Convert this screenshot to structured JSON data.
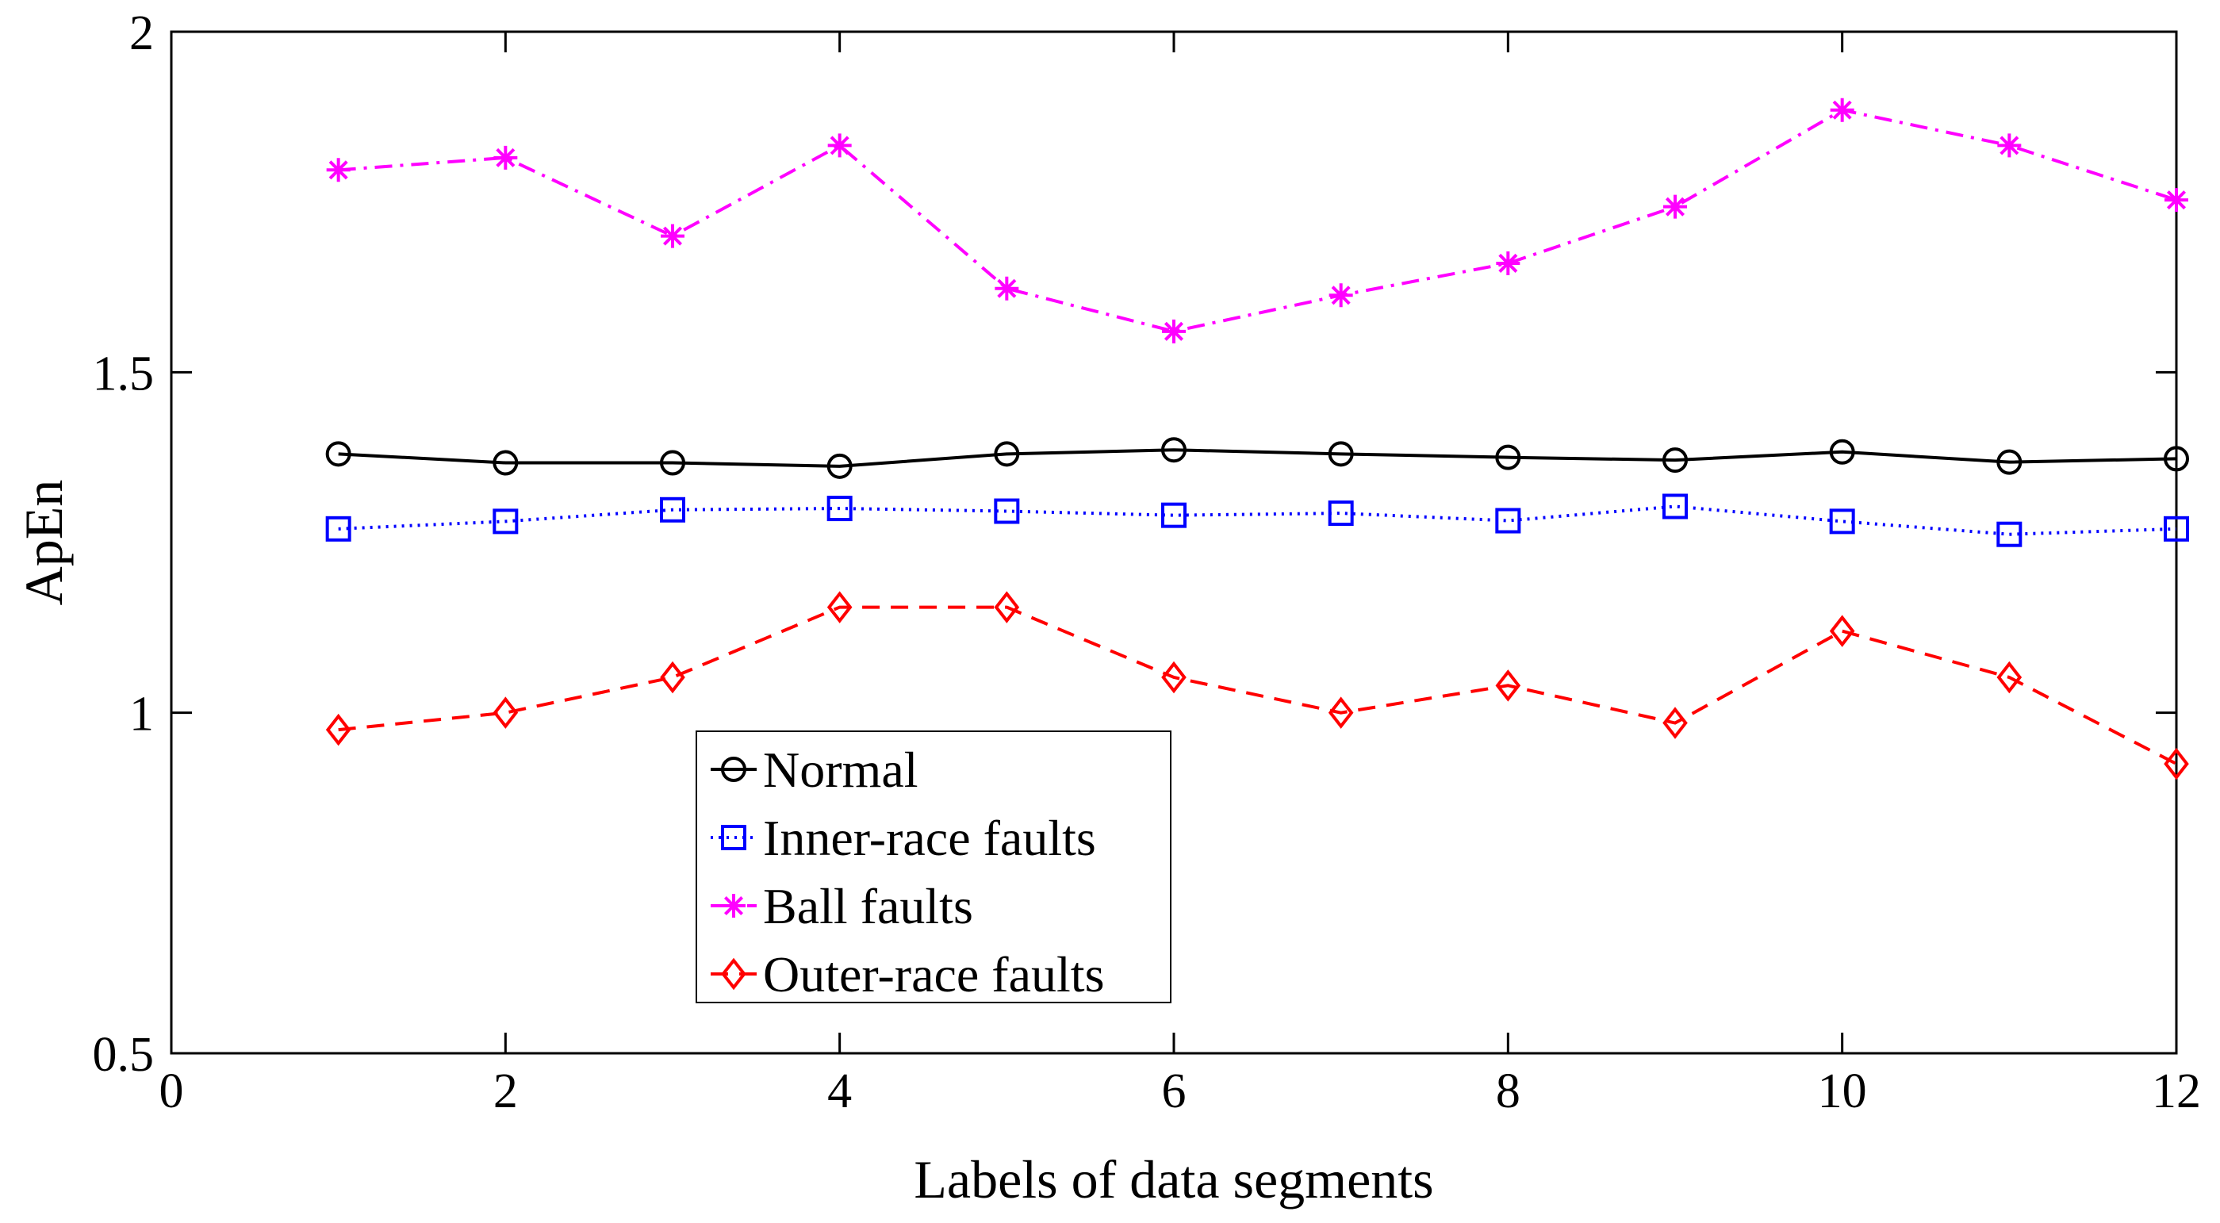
{
  "chart_data": {
    "type": "line",
    "title": "",
    "xlabel": "Labels of data segments",
    "ylabel": "ApEn",
    "xlim": [
      0,
      12
    ],
    "ylim": [
      0.5,
      2
    ],
    "xticks": [
      0,
      2,
      4,
      6,
      8,
      10,
      12
    ],
    "yticks": [
      0.5,
      1,
      1.5,
      2
    ],
    "xtick_labels": [
      "0",
      "2",
      "4",
      "6",
      "8",
      "10",
      "12"
    ],
    "ytick_labels": [
      "0.5",
      "1",
      "1.5",
      "2"
    ],
    "x": [
      1,
      2,
      3,
      4,
      5,
      6,
      7,
      8,
      9,
      10,
      11,
      12
    ],
    "grid": false,
    "legend_position": "lower-center-left",
    "series": [
      {
        "name": "Normal",
        "color": "#000000",
        "marker": "circle",
        "dash": "solid",
        "values": [
          1.38,
          1.367,
          1.367,
          1.362,
          1.38,
          1.386,
          1.38,
          1.375,
          1.371,
          1.383,
          1.368,
          1.373
        ]
      },
      {
        "name": "Inner-race faults",
        "color": "#0000ff",
        "marker": "square",
        "dash": "dotted",
        "values": [
          1.27,
          1.281,
          1.298,
          1.3,
          1.296,
          1.29,
          1.293,
          1.282,
          1.303,
          1.281,
          1.262,
          1.27
        ]
      },
      {
        "name": "Ball faults",
        "color": "#ff00ff",
        "marker": "asterisk",
        "dash": "dashdot",
        "values": [
          1.797,
          1.815,
          1.7,
          1.833,
          1.623,
          1.56,
          1.613,
          1.66,
          1.743,
          1.885,
          1.833,
          1.753
        ]
      },
      {
        "name": "Outer-race faults",
        "color": "#ff0000",
        "marker": "diamond",
        "dash": "dashed",
        "values": [
          0.975,
          1.0,
          1.052,
          1.155,
          1.155,
          1.052,
          1.0,
          1.04,
          0.985,
          1.12,
          1.052,
          0.925
        ]
      }
    ]
  }
}
